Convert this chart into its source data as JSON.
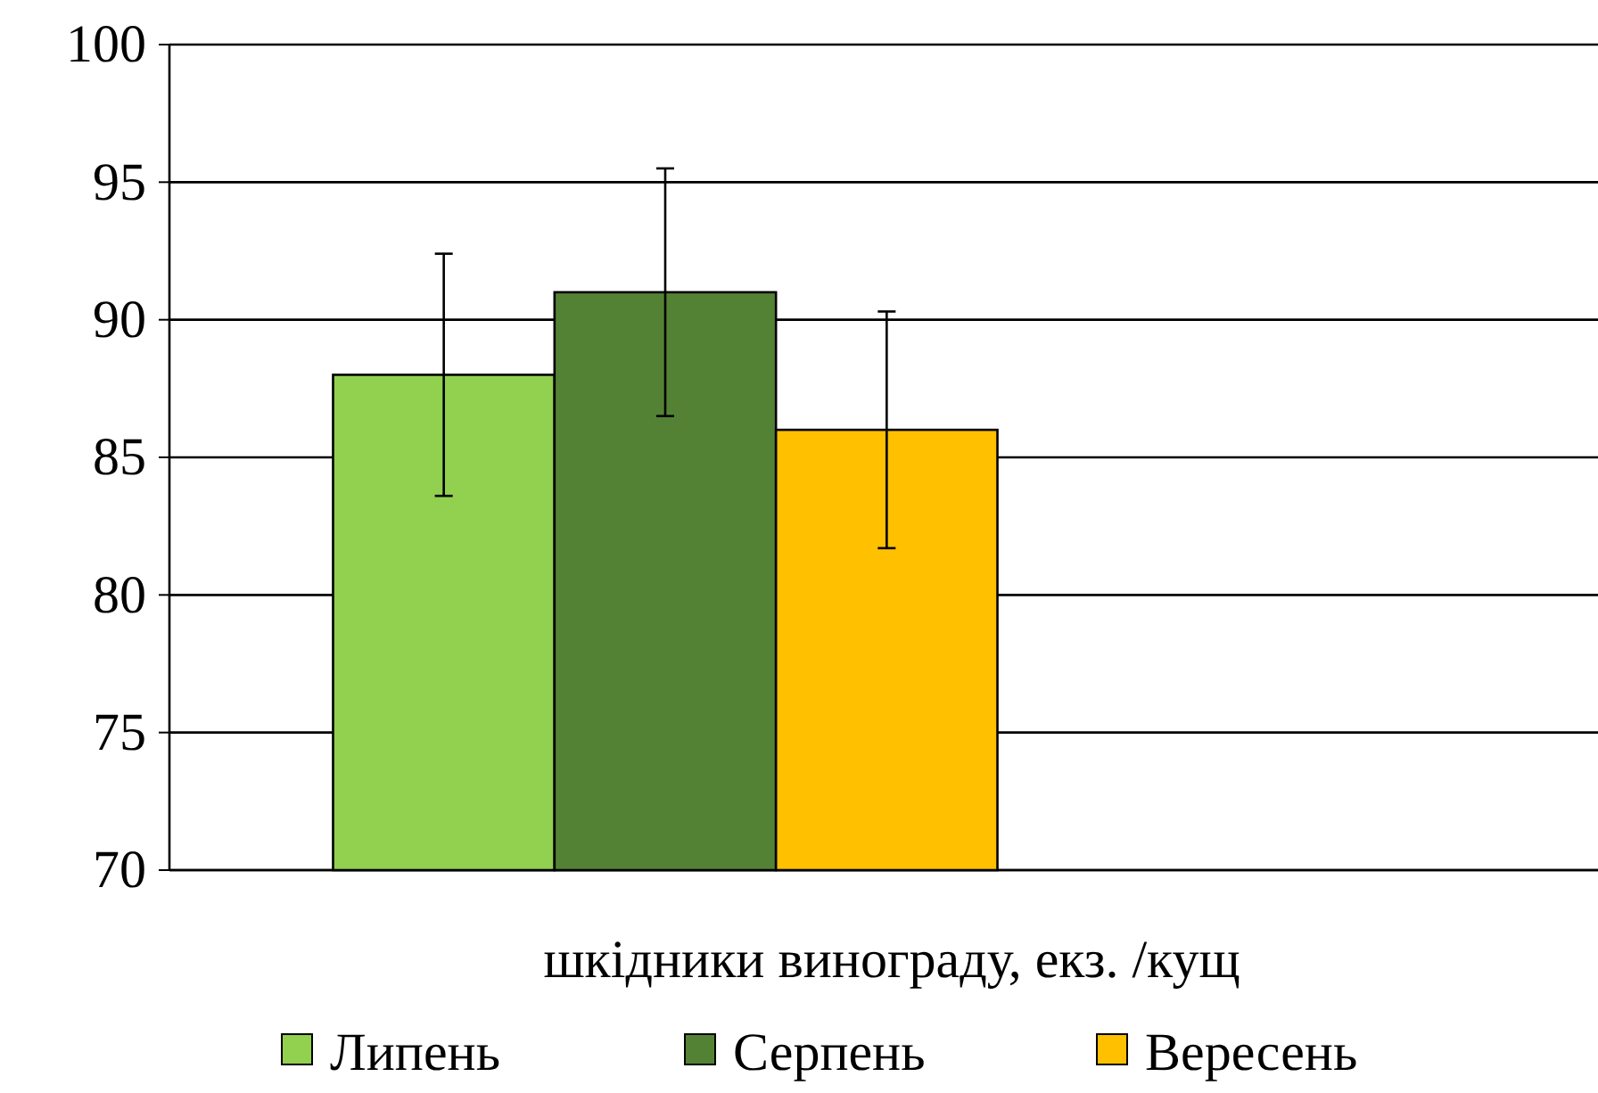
{
  "chart_data": {
    "type": "bar",
    "xlabel": "шкідники винограду, екз. /кущ",
    "categories": [
      null
    ],
    "series": [
      {
        "name": "Липень",
        "color": "#92d050",
        "values": [
          88
        ],
        "errors": [
          4.4
        ]
      },
      {
        "name": "Серпень",
        "color": "#548235",
        "values": [
          91
        ],
        "errors": [
          4.5
        ]
      },
      {
        "name": "Вересень",
        "color": "#ffc000",
        "values": [
          86
        ],
        "errors": [
          4.3
        ]
      }
    ],
    "ylim": [
      70,
      100
    ],
    "yticks": [
      70,
      75,
      80,
      85,
      90,
      95,
      100
    ],
    "grid": "y",
    "legend": "bottom"
  }
}
